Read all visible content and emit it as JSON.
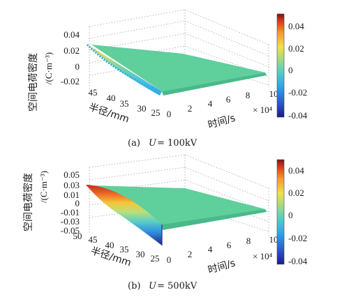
{
  "chart_data": [
    {
      "type": "surface",
      "panel": "a",
      "caption_prefix": "(a)",
      "caption_var": "U",
      "caption_value": "= 100kV",
      "xlabel": "半径/mm",
      "ylabel": "时间/s",
      "zlabel": "空间电荷密度",
      "zlabel_unit": "/(C·m⁻³)",
      "y_multiplier": "× 10⁴",
      "radius_ticks": [
        "45",
        "40",
        "35",
        "30",
        "25"
      ],
      "radius_range": [
        25,
        50
      ],
      "time_ticks": [
        "0",
        "2",
        "4",
        "6",
        "8",
        "10"
      ],
      "time_range": [
        0,
        10
      ],
      "z_ticks": [
        "0.04",
        "0.02",
        "0",
        "-0.02"
      ],
      "z_range": [
        -0.03,
        0.05
      ],
      "colorbar_ticks": [
        "0.04",
        "0.02",
        "0",
        "-0.02",
        "-0.04"
      ],
      "colorbar_range": [
        -0.045,
        0.045
      ],
      "colormap": "jet",
      "surface_profile_at_t0": [
        {
          "r": 50,
          "rho": 0.027
        },
        {
          "r": 45,
          "rho": 0.013
        },
        {
          "r": 40,
          "rho": -0.002
        },
        {
          "r": 35,
          "rho": -0.012
        },
        {
          "r": 30,
          "rho": -0.018
        },
        {
          "r": 25,
          "rho": -0.021
        }
      ],
      "steady_state_value": 0
    },
    {
      "type": "surface",
      "panel": "b",
      "caption_prefix": "(b)",
      "caption_var": "U",
      "caption_value": "= 500kV",
      "xlabel": "半径/mm",
      "ylabel": "时间/s",
      "zlabel": "空间电荷密度",
      "zlabel_unit": "/(C·m⁻³)",
      "y_multiplier": "× 10⁴",
      "radius_ticks": [
        "50",
        "45",
        "40",
        "35",
        "30",
        "25"
      ],
      "radius_range": [
        25,
        50
      ],
      "time_ticks": [
        "0",
        "2",
        "4",
        "6",
        "8",
        "10"
      ],
      "time_range": [
        0,
        10
      ],
      "z_ticks": [
        "0.05",
        "0.03",
        "0.01",
        "0",
        "-0.01",
        "-0.03",
        "-0.05"
      ],
      "z_range": [
        -0.06,
        0.06
      ],
      "colorbar_ticks": [
        "0.04",
        "0.02",
        "0",
        "-0.02",
        "-0.04"
      ],
      "colorbar_range": [
        -0.048,
        0.048
      ],
      "colormap": "jet",
      "surface_profile_at_t0": [
        {
          "r": 50,
          "rho": 0.045
        },
        {
          "r": 45,
          "rho": 0.036
        },
        {
          "r": 40,
          "rho": 0.012
        },
        {
          "r": 35,
          "rho": -0.018
        },
        {
          "r": 30,
          "rho": -0.04
        },
        {
          "r": 25,
          "rho": -0.052
        }
      ],
      "steady_state_value": 0
    }
  ]
}
